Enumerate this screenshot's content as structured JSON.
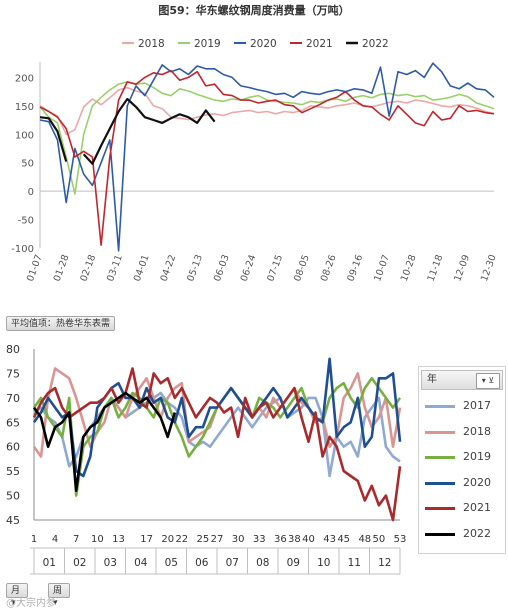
{
  "chart_data": [
    {
      "type": "line",
      "title": "图59：华东螺纹钢周度消费量（万吨）",
      "ylim": [
        -100,
        220
      ],
      "yticks": [
        -100,
        -50,
        0,
        50,
        100,
        150,
        200
      ],
      "x_tick_labels": [
        "01-07",
        "01-28",
        "02-18",
        "03-11",
        "04-01",
        "04-22",
        "05-13",
        "06-03",
        "06-24",
        "07-15",
        "08-05",
        "08-26",
        "09-16",
        "10-07",
        "10-28",
        "11-18",
        "12-09",
        "12-30"
      ],
      "legend_position": "top",
      "grid": false,
      "series": [
        {
          "name": "2018",
          "color": "#eaa9a8",
          "values": [
            150,
            140,
            132,
            100,
            108,
            148,
            162,
            152,
            164,
            178,
            182,
            176,
            172,
            150,
            145,
            130,
            128,
            126,
            130,
            134,
            136,
            133,
            138,
            140,
            142,
            138,
            140,
            136,
            140,
            138,
            142,
            150,
            148,
            146,
            150,
            152,
            155,
            150,
            148,
            152,
            156,
            158,
            155,
            160,
            158,
            154,
            150,
            148,
            152,
            150,
            146,
            140,
            136
          ]
        },
        {
          "name": "2019",
          "color": "#9bcf6b",
          "values": [
            148,
            130,
            120,
            60,
            -5,
            100,
            150,
            165,
            178,
            188,
            192,
            188,
            190,
            182,
            172,
            168,
            180,
            176,
            170,
            165,
            160,
            158,
            162,
            160,
            165,
            168,
            160,
            158,
            156,
            155,
            152,
            158,
            156,
            160,
            162,
            158,
            165,
            168,
            164,
            170,
            172,
            168,
            170,
            166,
            168,
            160,
            162,
            165,
            170,
            166,
            155,
            150,
            145
          ]
        },
        {
          "name": "2020",
          "color": "#2e5ba7",
          "values": [
            125,
            122,
            90,
            -20,
            75,
            30,
            10,
            50,
            90,
            -105,
            150,
            185,
            168,
            195,
            222,
            210,
            215,
            205,
            220,
            215,
            215,
            205,
            200,
            185,
            182,
            178,
            175,
            170,
            172,
            165,
            175,
            172,
            170,
            175,
            178,
            175,
            180,
            178,
            172,
            218,
            132,
            210,
            205,
            212,
            200,
            225,
            210,
            185,
            180,
            190,
            180,
            178,
            165
          ]
        },
        {
          "name": "2021",
          "color": "#c0262d",
          "values": [
            148,
            140,
            130,
            110,
            60,
            70,
            60,
            -95,
            60,
            160,
            192,
            188,
            200,
            208,
            205,
            212,
            195,
            200,
            210,
            185,
            188,
            170,
            168,
            160,
            160,
            155,
            158,
            160,
            152,
            150,
            138,
            145,
            152,
            160,
            165,
            175,
            160,
            150,
            148,
            135,
            125,
            150,
            135,
            120,
            115,
            140,
            125,
            128,
            150,
            140,
            142,
            138,
            136
          ]
        },
        {
          "name": "2022",
          "color": "#111111",
          "values": [
            130,
            128,
            105,
            52,
            null,
            65,
            48,
            80,
            110,
            140,
            162,
            148,
            130,
            125,
            120,
            128,
            135,
            130,
            120,
            142,
            122
          ]
        }
      ]
    },
    {
      "type": "line",
      "ylim": [
        45,
        80
      ],
      "yticks": [
        45,
        50,
        55,
        60,
        65,
        70,
        75,
        80
      ],
      "x_week_labels": [
        "1",
        "4",
        "7",
        "10",
        "13",
        "17",
        "20",
        "22",
        "25",
        "27",
        "30",
        "33",
        "36",
        "38",
        "40",
        "43",
        "45",
        "48",
        "50",
        "53"
      ],
      "x_month_labels": [
        "01",
        "02",
        "03",
        "04",
        "05",
        "06",
        "07",
        "08",
        "09",
        "10",
        "11",
        "12"
      ],
      "grid": false,
      "series": [
        {
          "name": "2017",
          "color": "#8fa9d2",
          "values": [
            67,
            68,
            66,
            65,
            62,
            56,
            58,
            62,
            64,
            66,
            68,
            70,
            68,
            66,
            67,
            68,
            69,
            70,
            71,
            69,
            68,
            66,
            61,
            60,
            61,
            60,
            62,
            64,
            66,
            68,
            66,
            64,
            66,
            68,
            69,
            70,
            66,
            67,
            68,
            70,
            70,
            66,
            54,
            62,
            60,
            61,
            58,
            66,
            68,
            70,
            60,
            58,
            57
          ]
        },
        {
          "name": "2018",
          "color": "#d99592",
          "values": [
            60,
            58,
            70,
            76,
            75,
            74,
            70,
            65,
            60,
            63,
            65,
            70,
            68,
            66,
            70,
            72,
            74,
            70,
            66,
            70,
            72,
            73,
            61,
            62,
            63,
            64,
            68,
            70,
            72,
            70,
            68,
            66,
            68,
            66,
            70,
            68,
            70,
            72,
            69,
            68,
            65,
            66,
            60,
            62,
            70,
            72,
            75,
            68,
            64,
            66,
            70,
            60,
            68
          ]
        },
        {
          "name": "2019",
          "color": "#77b041",
          "values": [
            68,
            70,
            66,
            64,
            62,
            70,
            50,
            60,
            62,
            63,
            68,
            70,
            66,
            68,
            71,
            70,
            68,
            66,
            70,
            69,
            65,
            62,
            58,
            60,
            62,
            65,
            68,
            70,
            72,
            70,
            68,
            66,
            70,
            69,
            68,
            66,
            68,
            70,
            72,
            68,
            66,
            65,
            70,
            72,
            73,
            70,
            68,
            72,
            74,
            72,
            70,
            68,
            70
          ]
        },
        {
          "name": "2020",
          "color": "#1f4f91",
          "values": [
            65,
            67,
            70,
            68,
            66,
            67,
            55,
            54,
            58,
            68,
            70,
            72,
            73,
            70,
            70,
            68,
            72,
            69,
            70,
            66,
            65,
            70,
            62,
            64,
            64,
            68,
            68,
            70,
            72,
            70,
            68,
            66,
            68,
            70,
            72,
            70,
            66,
            68,
            70,
            68,
            66,
            65,
            78,
            62,
            64,
            65,
            70,
            60,
            62,
            74,
            74,
            75,
            61
          ]
        },
        {
          "name": "2021",
          "color": "#a82a2c",
          "values": [
            66,
            69,
            71,
            72,
            68,
            66,
            67,
            68,
            69,
            69,
            70,
            72,
            69,
            71,
            76,
            69,
            68,
            75,
            73,
            74,
            70,
            72,
            69,
            66,
            68,
            70,
            69,
            67,
            68,
            62,
            70,
            66,
            68,
            69,
            66,
            68,
            70,
            72,
            66,
            61,
            67,
            58,
            62,
            60,
            55,
            54,
            53,
            49,
            52,
            48,
            50,
            45,
            56
          ]
        },
        {
          "name": "2022",
          "color": "#000000",
          "values": [
            68,
            66,
            60,
            64,
            65,
            67,
            51,
            62,
            64,
            65,
            68,
            69,
            70,
            71,
            70,
            69,
            70,
            68,
            66,
            62,
            67
          ]
        }
      ]
    }
  ],
  "bottom": {
    "page_filter_label": "平均值项：热卷华东表需",
    "legend_title": "年",
    "legend_filter_icon": "filter-icon",
    "field_button_month": "月",
    "field_button_week": "周",
    "watermark": "@大宗内参"
  }
}
